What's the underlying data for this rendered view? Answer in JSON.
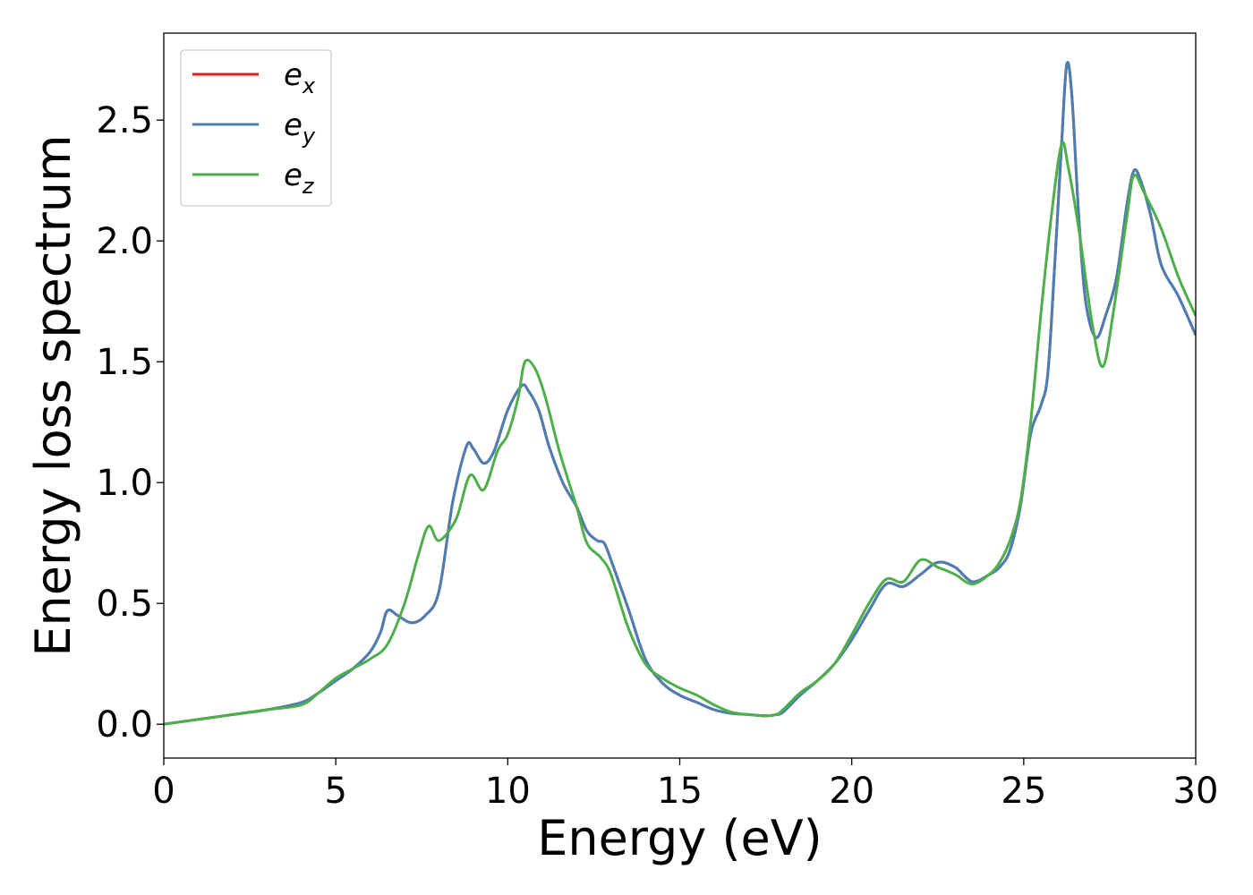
{
  "chart_data": {
    "type": "line",
    "title": "",
    "xlabel": "Energy (eV)",
    "ylabel": "Energy loss spectrum",
    "xlim": [
      0,
      30
    ],
    "ylim": [
      -0.14,
      2.86
    ],
    "xticks": [
      0,
      5,
      10,
      15,
      20,
      25,
      30
    ],
    "xtick_labels": [
      "0",
      "5",
      "10",
      "15",
      "20",
      "25",
      "30"
    ],
    "yticks": [
      0.0,
      0.5,
      1.0,
      1.5,
      2.0,
      2.5
    ],
    "ytick_labels": [
      "0.0",
      "0.5",
      "1.0",
      "1.5",
      "2.0",
      "2.5"
    ],
    "grid": false,
    "legend_position": "top-left",
    "series": [
      {
        "name": "e_x",
        "label_base": "e",
        "label_sub": "x",
        "color": "#e41a1c",
        "x": [
          0,
          1,
          2,
          3,
          4,
          4.5,
          5,
          5.5,
          6,
          6.3,
          6.5,
          6.8,
          7.2,
          7.6,
          8,
          8.4,
          8.8,
          9,
          9.3,
          9.6,
          10,
          10.4,
          10.6,
          10.9,
          11.2,
          11.6,
          12,
          12.3,
          12.6,
          12.8,
          13,
          13.5,
          14,
          14.5,
          15,
          15.5,
          16,
          16.5,
          17,
          17.5,
          17.8,
          18,
          18.5,
          19,
          19.5,
          20,
          20.5,
          21,
          21.5,
          22,
          22.5,
          23,
          23.5,
          24,
          24.3,
          24.6,
          24.9,
          25.2,
          25.5,
          25.7,
          25.9,
          26.1,
          26.25,
          26.4,
          26.6,
          26.8,
          27.1,
          27.4,
          27.7,
          28,
          28.2,
          28.4,
          28.7,
          29,
          29.5,
          30
        ],
        "y": [
          0,
          0.02,
          0.04,
          0.06,
          0.09,
          0.13,
          0.18,
          0.23,
          0.3,
          0.38,
          0.47,
          0.45,
          0.42,
          0.45,
          0.55,
          0.92,
          1.15,
          1.14,
          1.08,
          1.13,
          1.3,
          1.4,
          1.38,
          1.3,
          1.15,
          1.0,
          0.9,
          0.8,
          0.76,
          0.75,
          0.68,
          0.48,
          0.27,
          0.17,
          0.12,
          0.09,
          0.06,
          0.045,
          0.04,
          0.035,
          0.04,
          0.05,
          0.12,
          0.18,
          0.25,
          0.35,
          0.47,
          0.58,
          0.57,
          0.62,
          0.67,
          0.65,
          0.59,
          0.62,
          0.65,
          0.72,
          0.9,
          1.2,
          1.32,
          1.45,
          1.9,
          2.4,
          2.73,
          2.6,
          2.1,
          1.75,
          1.6,
          1.7,
          1.85,
          2.15,
          2.29,
          2.25,
          2.1,
          1.9,
          1.77,
          1.61
        ]
      },
      {
        "name": "e_y",
        "label_base": "e",
        "label_sub": "y",
        "color": "#4a7fb5",
        "x": [
          0,
          1,
          2,
          3,
          4,
          4.5,
          5,
          5.5,
          6,
          6.3,
          6.5,
          6.8,
          7.2,
          7.6,
          8,
          8.4,
          8.8,
          9,
          9.3,
          9.6,
          10,
          10.4,
          10.6,
          10.9,
          11.2,
          11.6,
          12,
          12.3,
          12.6,
          12.8,
          13,
          13.5,
          14,
          14.5,
          15,
          15.5,
          16,
          16.5,
          17,
          17.5,
          17.8,
          18,
          18.5,
          19,
          19.5,
          20,
          20.5,
          21,
          21.5,
          22,
          22.5,
          23,
          23.5,
          24,
          24.3,
          24.6,
          24.9,
          25.2,
          25.5,
          25.7,
          25.9,
          26.1,
          26.25,
          26.4,
          26.6,
          26.8,
          27.1,
          27.4,
          27.7,
          28,
          28.2,
          28.4,
          28.7,
          29,
          29.5,
          30
        ],
        "y": [
          0,
          0.02,
          0.04,
          0.06,
          0.09,
          0.13,
          0.18,
          0.23,
          0.3,
          0.38,
          0.47,
          0.45,
          0.42,
          0.45,
          0.55,
          0.92,
          1.15,
          1.14,
          1.08,
          1.13,
          1.3,
          1.4,
          1.38,
          1.3,
          1.15,
          1.0,
          0.9,
          0.8,
          0.76,
          0.75,
          0.68,
          0.48,
          0.27,
          0.17,
          0.12,
          0.09,
          0.06,
          0.045,
          0.04,
          0.035,
          0.04,
          0.05,
          0.12,
          0.18,
          0.25,
          0.35,
          0.47,
          0.58,
          0.57,
          0.62,
          0.67,
          0.65,
          0.59,
          0.62,
          0.65,
          0.72,
          0.9,
          1.2,
          1.32,
          1.45,
          1.9,
          2.4,
          2.73,
          2.6,
          2.1,
          1.75,
          1.6,
          1.7,
          1.85,
          2.15,
          2.29,
          2.25,
          2.1,
          1.9,
          1.77,
          1.61
        ]
      },
      {
        "name": "e_z",
        "label_base": "e",
        "label_sub": "z",
        "color": "#4daf4a",
        "x": [
          0,
          1,
          2,
          3,
          4,
          4.5,
          5,
          5.5,
          6,
          6.5,
          7,
          7.4,
          7.7,
          8,
          8.5,
          8.9,
          9.3,
          9.7,
          10,
          10.3,
          10.5,
          10.8,
          11.1,
          11.5,
          12,
          12.3,
          12.7,
          13,
          13.5,
          14,
          14.5,
          15,
          15.5,
          16,
          16.5,
          17,
          17.5,
          17.8,
          18,
          18.5,
          19,
          19.5,
          20,
          20.5,
          21,
          21.5,
          22,
          22.5,
          23,
          23.5,
          24,
          24.3,
          24.6,
          24.9,
          25.2,
          25.5,
          25.8,
          26.1,
          26.3,
          26.6,
          27,
          27.3,
          27.6,
          28,
          28.2,
          28.5,
          29,
          29.5,
          30
        ],
        "y": [
          0,
          0.02,
          0.04,
          0.06,
          0.08,
          0.13,
          0.19,
          0.23,
          0.27,
          0.33,
          0.5,
          0.7,
          0.82,
          0.76,
          0.85,
          1.03,
          0.97,
          1.13,
          1.2,
          1.35,
          1.5,
          1.47,
          1.35,
          1.13,
          0.9,
          0.75,
          0.69,
          0.62,
          0.4,
          0.25,
          0.19,
          0.15,
          0.12,
          0.08,
          0.05,
          0.04,
          0.035,
          0.04,
          0.06,
          0.13,
          0.18,
          0.25,
          0.37,
          0.5,
          0.6,
          0.59,
          0.68,
          0.65,
          0.62,
          0.58,
          0.62,
          0.67,
          0.76,
          0.92,
          1.25,
          1.7,
          2.1,
          2.4,
          2.3,
          2.05,
          1.65,
          1.48,
          1.7,
          2.1,
          2.27,
          2.2,
          2.05,
          1.85,
          1.69
        ]
      }
    ]
  }
}
